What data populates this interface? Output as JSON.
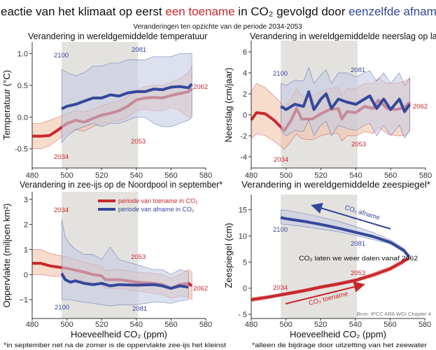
{
  "title": {
    "part1": "Reactie van het klimaat op eerst ",
    "part2_increase": "een toename",
    "part3": " in CO₂ gevolgd door ",
    "part4_decrease": "eenzelfde afname",
    "subtitle": "Veranderingen ten opzichte van de periode 2034-2053"
  },
  "colors": {
    "increase": "#c8282d",
    "decrease": "#34489a",
    "increase_band": "#f2c3a8",
    "decrease_band": "#c7cbe2",
    "shading": "#e4e2df"
  },
  "legend": {
    "increase": "periode van toename in CO₂",
    "decrease": "periode van afname in CO₂"
  },
  "xlabel": "Hoeveelheid CO₂ (ppm)",
  "footnotes": {
    "seaice": "*in september net na de zomer is de oppervlakte zee-ijs het kleinst",
    "sealevel": "*alleen de bijdrage door uitzetting van het zeewater"
  },
  "source": "Bron: IPCC AR6 WGI Chapter 4",
  "chart_data": [
    {
      "type": "line",
      "title": "Verandering in wereldgemiddelde temperatuur",
      "xlabel": "Hoeveelheid CO₂ (ppm)",
      "ylabel": "Temperatuur (°C)",
      "xlim": [
        480,
        580
      ],
      "ylim": [
        -0.8,
        1.18
      ],
      "xticks": [
        "480",
        "500",
        "520",
        "540",
        "560",
        "580"
      ],
      "yticks": [
        {
          "v": -0.5,
          "label": "-0.5"
        },
        {
          "v": 0,
          "label": "0.0"
        },
        {
          "v": 0.5,
          "label": "0.5"
        },
        {
          "v": 1.0,
          "label": "1.0"
        }
      ],
      "shaded_x": [
        497,
        541
      ],
      "annotations": {
        "d_start": "2100",
        "d_mid": "2081",
        "peak": "2062",
        "i_mid": "2053",
        "i_start": "2034"
      },
      "series": [
        {
          "period": "increase",
          "x": [
            480,
            485,
            490,
            495,
            500,
            505,
            510,
            515,
            520,
            525,
            530,
            535,
            540,
            545,
            550,
            555,
            560,
            565,
            570,
            572
          ],
          "mean": [
            -0.3,
            -0.3,
            -0.29,
            -0.2,
            -0.1,
            -0.05,
            -0.08,
            -0.02,
            0.03,
            0.06,
            0.1,
            0.17,
            0.27,
            0.3,
            0.31,
            0.3,
            0.34,
            0.37,
            0.4,
            0.45
          ],
          "lower": [
            -0.5,
            -0.5,
            -0.45,
            -0.35,
            -0.25,
            -0.2,
            -0.22,
            -0.15,
            -0.1,
            -0.08,
            -0.05,
            0.0,
            0.1,
            0.12,
            0.1,
            0.1,
            0.15,
            0.1,
            0.0,
            0.0
          ],
          "upper": [
            -0.1,
            -0.1,
            -0.05,
            0.0,
            0.05,
            0.1,
            0.08,
            0.12,
            0.18,
            0.22,
            0.25,
            0.32,
            0.42,
            0.48,
            0.5,
            0.5,
            0.55,
            0.6,
            0.7,
            0.8
          ]
        },
        {
          "period": "decrease",
          "x": [
            497,
            500,
            505,
            510,
            515,
            520,
            525,
            530,
            535,
            540,
            545,
            550,
            555,
            560,
            565,
            570,
            572
          ],
          "mean": [
            0.13,
            0.17,
            0.2,
            0.25,
            0.3,
            0.3,
            0.35,
            0.33,
            0.38,
            0.4,
            0.4,
            0.44,
            0.43,
            0.47,
            0.48,
            0.46,
            0.52
          ],
          "lower": [
            -0.4,
            -0.3,
            -0.2,
            -0.15,
            -0.1,
            -0.15,
            -0.1,
            -0.1,
            -0.05,
            0.0,
            0.0,
            -0.1,
            -0.15,
            -0.15,
            -0.1,
            -0.05,
            0.0
          ],
          "upper": [
            0.75,
            0.7,
            0.65,
            0.7,
            0.8,
            0.8,
            0.85,
            0.85,
            0.9,
            0.9,
            0.9,
            0.95,
            0.95,
            0.95,
            1.0,
            1.0,
            1.0
          ]
        }
      ]
    },
    {
      "type": "line",
      "title": "Verandering in wereldgemiddelde neerslag op land",
      "xlabel": "",
      "ylabel": "Neerslag (cm/jaar)",
      "xlim": [
        480,
        580
      ],
      "ylim": [
        -5.07,
        7.07
      ],
      "xticks": [
        "480",
        "500",
        "520",
        "540",
        "560",
        "580"
      ],
      "yticks": [
        {
          "v": -4,
          "label": "-4"
        },
        {
          "v": -2,
          "label": "-2"
        },
        {
          "v": 0,
          "label": "0"
        },
        {
          "v": 2,
          "label": "2"
        },
        {
          "v": 4,
          "label": "4"
        },
        {
          "v": 6,
          "label": "6"
        }
      ],
      "shaded_x": [
        497,
        541
      ],
      "annotations": {
        "d_start": "2100",
        "d_mid": "2081",
        "peak": "2062",
        "i_mid": "2053",
        "i_start": "2034"
      },
      "series": [
        {
          "period": "increase",
          "x": [
            480,
            483,
            488,
            493,
            499,
            503,
            506,
            509,
            515,
            520,
            525,
            530,
            532,
            535,
            540,
            545,
            550,
            553,
            558,
            563,
            568,
            571
          ],
          "mean": [
            -0.5,
            0.2,
            0.1,
            -0.5,
            -1.5,
            -0.5,
            0.6,
            -0.4,
            -0.4,
            0.1,
            0.5,
            0.6,
            -0.4,
            0.3,
            0.2,
            0.8,
            0.6,
            1.4,
            0.6,
            0.5,
            0.7,
            1.2
          ],
          "lower": [
            -2.3,
            -1.8,
            -2.0,
            -2.5,
            -3.3,
            -2.5,
            -1.8,
            -2.3,
            -2.4,
            -2.0,
            -1.8,
            -1.8,
            -2.5,
            -2.0,
            -2.0,
            -1.6,
            -1.8,
            -1.2,
            -1.8,
            -2.0,
            -2.0,
            -1.5
          ],
          "upper": [
            2.2,
            3.0,
            2.6,
            1.8,
            0.8,
            1.5,
            2.5,
            1.8,
            1.8,
            2.2,
            2.5,
            2.6,
            1.8,
            2.5,
            2.5,
            3.0,
            3.0,
            3.5,
            3.0,
            3.0,
            3.2,
            3.5
          ]
        },
        {
          "period": "decrease",
          "x": [
            497,
            500,
            505,
            510,
            513,
            516,
            520,
            523,
            526,
            530,
            535,
            540,
            545,
            548,
            552,
            556,
            560,
            565,
            568,
            571
          ],
          "mean": [
            0.8,
            0.5,
            1.0,
            0.8,
            2.2,
            0.5,
            1.5,
            2.0,
            0.6,
            1.5,
            1.2,
            1.0,
            1.5,
            1.8,
            0.6,
            1.5,
            0.5,
            1.5,
            0.3,
            1.0
          ],
          "lower": [
            -1.5,
            -2.0,
            -1.5,
            -1.6,
            -0.5,
            -2.0,
            -1.0,
            -0.6,
            -2.0,
            -1.0,
            -1.3,
            -1.5,
            -1.0,
            -0.8,
            -2.0,
            -1.0,
            -2.0,
            -1.0,
            -2.2,
            -1.5
          ],
          "upper": [
            3.0,
            2.8,
            3.3,
            3.2,
            4.5,
            3.0,
            3.8,
            4.3,
            3.0,
            4.0,
            4.0,
            3.6,
            4.0,
            4.2,
            3.2,
            4.0,
            3.0,
            4.0,
            2.8,
            3.5
          ]
        }
      ]
    },
    {
      "type": "line",
      "title": "Verandering in zee-ijs op de Noordpool in september*",
      "xlabel": "Hoeveelheid CO₂ (ppm)",
      "ylabel": "Oppervlakte (miljoen km²)",
      "xlim": [
        480,
        580
      ],
      "ylim": [
        -1.75,
        3.3
      ],
      "xticks": [
        "480",
        "500",
        "520",
        "540",
        "560",
        "580"
      ],
      "yticks": [
        {
          "v": -1,
          "label": "−1"
        },
        {
          "v": 0,
          "label": "0"
        },
        {
          "v": 1,
          "label": "1"
        },
        {
          "v": 2,
          "label": "2"
        },
        {
          "v": 3,
          "label": "3"
        }
      ],
      "shaded_x": [
        497,
        541
      ],
      "annotations": {
        "i_start": "2034",
        "i_mid": "2053",
        "peak": "2062",
        "d_start": "2100",
        "d_mid": "2081"
      },
      "series": [
        {
          "period": "increase",
          "x": [
            480,
            485,
            490,
            500,
            510,
            515,
            520,
            522,
            530,
            540,
            550,
            555,
            560,
            565,
            570,
            572
          ],
          "mean": [
            0.45,
            0.45,
            0.35,
            0.25,
            0.1,
            0.0,
            -0.05,
            -0.2,
            -0.2,
            -0.3,
            -0.35,
            -0.4,
            -0.55,
            -0.4,
            -0.35,
            -0.45
          ],
          "lower": [
            0.0,
            0.0,
            -0.05,
            -0.1,
            -0.25,
            -0.35,
            -0.4,
            -0.55,
            -0.55,
            -0.65,
            -0.75,
            -0.8,
            -0.95,
            -0.85,
            -0.9,
            -1.0
          ],
          "upper": [
            1.0,
            1.0,
            0.85,
            0.7,
            0.5,
            0.4,
            0.35,
            0.15,
            0.2,
            0.1,
            0.05,
            0.0,
            -0.15,
            0.0,
            0.2,
            0.1
          ]
        },
        {
          "period": "decrease",
          "x": [
            497,
            499,
            502,
            505,
            510,
            515,
            520,
            525,
            530,
            540,
            550,
            555,
            560,
            565,
            570
          ],
          "mean": [
            0.05,
            -0.2,
            -0.3,
            -0.25,
            -0.35,
            -0.4,
            -0.35,
            -0.45,
            -0.4,
            -0.42,
            -0.4,
            -0.45,
            -0.55,
            -0.45,
            -0.5
          ],
          "lower": [
            -1.0,
            -1.0,
            -1.0,
            -1.05,
            -1.1,
            -1.15,
            -1.2,
            -1.25,
            -1.2,
            -1.2,
            -1.1,
            -1.1,
            -1.15,
            -1.05,
            -1.0
          ],
          "upper": [
            2.2,
            1.5,
            1.2,
            1.0,
            0.8,
            0.8,
            0.6,
            1.1,
            0.6,
            0.4,
            0.2,
            0.2,
            0.0,
            0.2,
            0.1
          ]
        }
      ]
    },
    {
      "type": "line",
      "title": "Verandering in wereldgemiddelde zeespiegel*",
      "xlabel": "Hoeveelheid CO₂ (ppm)",
      "ylabel": "Zeespiegel (cm)",
      "xlim": [
        480,
        580
      ],
      "ylim": [
        -5.8,
        17.9
      ],
      "xticks": [
        "480",
        "500",
        "520",
        "540",
        "560",
        "580"
      ],
      "yticks": [
        {
          "v": -5,
          "label": "- 5"
        },
        {
          "v": 0,
          "label": "0"
        },
        {
          "v": 5,
          "label": "5"
        },
        {
          "v": 10,
          "label": "10"
        },
        {
          "v": 15,
          "label": "15"
        }
      ],
      "shaded_x": [
        497,
        541
      ],
      "annotations": {
        "d_start": "2100",
        "d_mid": "2081",
        "i_mid": "2053",
        "i_start": "2034",
        "turn": "CO₂ laten we weer dalen vanaf 2062",
        "decrease_arrow": "CO₂ afname",
        "increase_arrow": "CO₂ toename"
      },
      "series": [
        {
          "period": "increase",
          "x": [
            480,
            490,
            500,
            510,
            520,
            530,
            540,
            550,
            560,
            567,
            571
          ],
          "mean": [
            -2.2,
            -1.7,
            -1.1,
            -0.5,
            0.2,
            0.8,
            1.5,
            2.5,
            3.7,
            5.0,
            5.8
          ],
          "lower": [
            -2.6,
            -2.0,
            -1.4,
            -0.8,
            -0.1,
            0.5,
            1.2,
            2.1,
            3.3,
            4.6,
            5.6
          ],
          "upper": [
            -1.8,
            -1.4,
            -0.8,
            -0.2,
            0.5,
            1.1,
            1.8,
            2.9,
            4.1,
            5.4,
            6.0
          ]
        },
        {
          "period": "decrease",
          "x": [
            571,
            568,
            560,
            550,
            540,
            530,
            520,
            510,
            500,
            497
          ],
          "mean": [
            6.0,
            7.2,
            8.8,
            9.9,
            10.7,
            11.5,
            12.2,
            12.8,
            13.3,
            13.5
          ],
          "lower": [
            5.8,
            6.9,
            8.5,
            9.3,
            10.1,
            10.8,
            11.3,
            11.8,
            12.2,
            12.3
          ],
          "upper": [
            6.2,
            7.6,
            9.3,
            10.7,
            11.8,
            12.8,
            13.6,
            14.3,
            14.9,
            15.0
          ]
        }
      ]
    }
  ]
}
